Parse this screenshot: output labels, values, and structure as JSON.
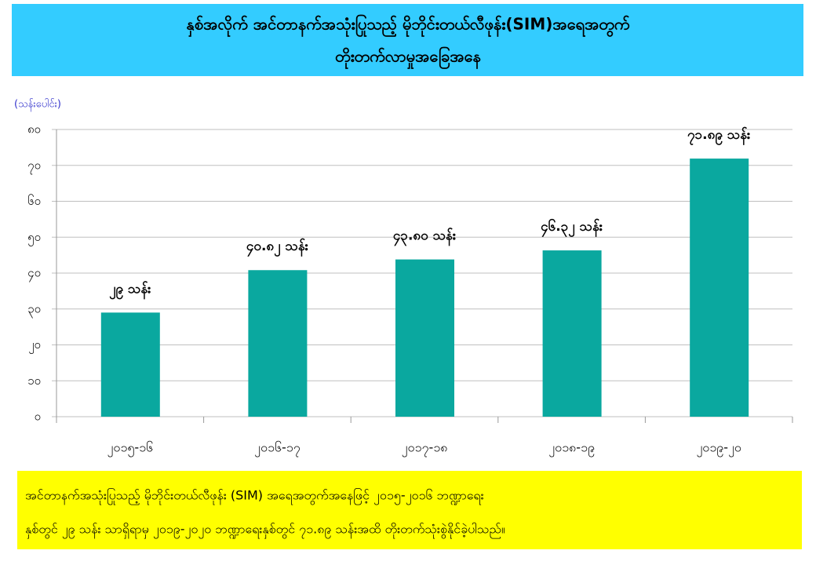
{
  "chart_data": {
    "type": "bar",
    "title": [
      "နှစ်အလိုက် အင်တာနက်အသုံးပြုသည့် မိုဘိုင်းတယ်လီဖုန်း(SIM)အရေအတွက်",
      "တိုးတက်လာမှုအခြေအနေ"
    ],
    "y_label": "(သန်းပေါင်း)",
    "categories": [
      "၂၀၁၅-၁၆",
      "၂၀၁၆-၁၇",
      "၂၀၁၇-၁၈",
      "၂၀၁၈-၁၉",
      "၂၀၁၉-၂၀"
    ],
    "values": [
      29,
      40.82,
      43.8,
      46.32,
      71.89
    ],
    "value_labels": [
      "၂၉ သန်း",
      "၄၀.၈၂ သန်း",
      "၄၃.၈၀ သန်း",
      "၄၆.၃၂ သန်း",
      "၇၁.၈၉ သန်း"
    ],
    "color": "#0aa89f",
    "ylim": [
      0,
      80
    ],
    "yticks": [
      {
        "value": 0,
        "label": "၀"
      },
      {
        "value": 10,
        "label": "၁၀"
      },
      {
        "value": 20,
        "label": "၂၀"
      },
      {
        "value": 30,
        "label": "၃၀"
      },
      {
        "value": 40,
        "label": "၄၀"
      },
      {
        "value": 50,
        "label": "၅၀"
      },
      {
        "value": 60,
        "label": "၆၀"
      },
      {
        "value": 70,
        "label": "၇၀"
      },
      {
        "value": 80,
        "label": "၈၀"
      }
    ],
    "grid": true,
    "note": [
      "အင်တာနက်အသုံးပြုသည့် မိုဘိုင်းတယ်လီဖုန်း (SIM) အရေအတွက်အနေဖြင့် ၂၀၁၅-၂၀၁၆ ဘဏ္ဍာရေး",
      "နှစ်တွင် ၂၉ သန်း သာရှိရာမှ ၂၀၁၉-၂၀၂၀ ဘဏ္ဍာရေးနှစ်တွင် ၇၁.၈၉ သန်းအထိ တိုးတက်သုံးစွဲနိုင်ခဲ့ပါသည်။"
    ]
  }
}
